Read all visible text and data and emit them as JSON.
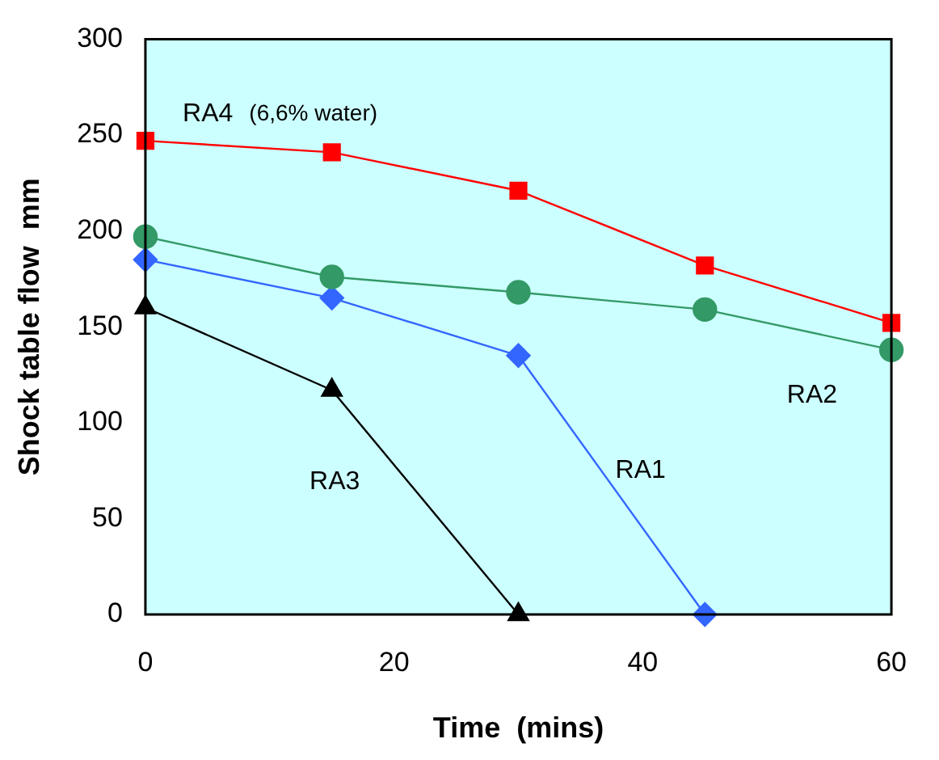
{
  "chart_data": {
    "type": "line",
    "xlabel": "Time  (mins)",
    "ylabel": "Shock table flow  mm",
    "x": [
      0,
      15,
      30,
      45,
      60
    ],
    "series": [
      {
        "name": "RA4",
        "color": "#ff0000",
        "marker": "square",
        "values": [
          247,
          241,
          221,
          182,
          152
        ]
      },
      {
        "name": "RA2",
        "color": "#339966",
        "marker": "circle",
        "values": [
          197,
          176,
          168,
          159,
          138
        ]
      },
      {
        "name": "RA1",
        "color": "#3366ff",
        "marker": "diamond",
        "values": [
          185,
          165,
          135,
          0,
          null
        ]
      },
      {
        "name": "RA3",
        "color": "#000000",
        "marker": "triangle",
        "values": [
          160,
          117,
          0,
          null,
          null
        ]
      }
    ],
    "annotations": [
      "(6,6% water)"
    ],
    "xlim": [
      0,
      60
    ],
    "xticks": [
      0,
      20,
      40,
      60
    ],
    "ylim": [
      0,
      300
    ],
    "yticks": [
      0,
      50,
      100,
      150,
      200,
      250,
      300
    ],
    "grid": false,
    "legend": false,
    "line_style": "solid"
  }
}
